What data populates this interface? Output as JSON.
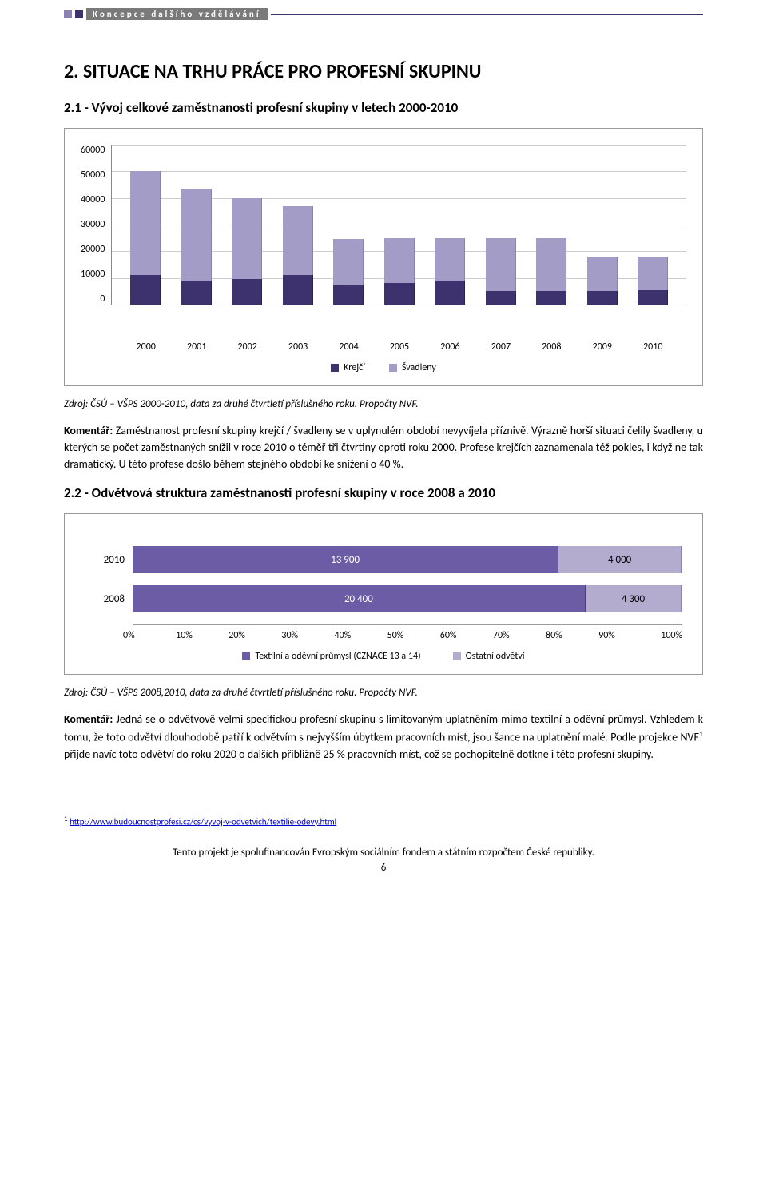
{
  "header": {
    "strip_text": "Koncepce dalšího vzdělávání"
  },
  "section": {
    "title": "2. SITUACE NA TRHU PRÁCE PRO PROFESNÍ SKUPINU",
    "sub1": "2.1 - Vývoj celkové zaměstnanosti profesní skupiny v letech 2000-2010",
    "sub2": "2.2 - Odvětvová struktura zaměstnanosti profesní skupiny v roce 2008 a 2010"
  },
  "chart1": {
    "type": "stacked-bar",
    "ylim": [
      0,
      60000
    ],
    "ytick_step": 10000,
    "yticks": [
      "60000",
      "50000",
      "40000",
      "30000",
      "20000",
      "10000",
      "0"
    ],
    "categories": [
      "2000",
      "2001",
      "2002",
      "2003",
      "2004",
      "2005",
      "2006",
      "2007",
      "2008",
      "2009",
      "2010"
    ],
    "series": [
      {
        "name": "Krejčí",
        "color": "#3d326d",
        "values": [
          11000,
          9000,
          9500,
          11000,
          7500,
          8000,
          9000,
          5000,
          5000,
          5000,
          5500
        ]
      },
      {
        "name": "Švadleny",
        "color": "#a29cc6",
        "values": [
          39000,
          34500,
          30500,
          26000,
          17000,
          17000,
          16000,
          20000,
          20000,
          13000,
          12500
        ]
      }
    ],
    "legend": [
      {
        "label": "Krejčí",
        "color": "#3d326d"
      },
      {
        "label": "Švadleny",
        "color": "#a29cc6"
      }
    ],
    "grid_color": "#cccccc",
    "background_color": "#ffffff"
  },
  "source1": "Zdroj: ČSÚ – VŠPS 2000-2010, data za druhé čtvrtletí příslušného roku. Propočty NVF.",
  "comment1_label": "Komentář:",
  "comment1_body": " Zaměstnanost profesní skupiny krejčí / švadleny se v uplynulém období nevyvíjela příznivě. Výrazně horší situaci čelily švadleny, u kterých se počet zaměstnaných snížil v roce 2010 o téměř tři čtvrtiny oproti roku 2000. Profese krejčích zaznamenala též pokles, i když ne tak dramatický. U této profese došlo během stejného období ke snížení o 40 %.",
  "chart2": {
    "type": "stacked-horizontal-bar",
    "rows": [
      {
        "label": "2010",
        "segments": [
          {
            "value": "13 900",
            "pct": 77.7,
            "color": "#6b5ca5",
            "text_color": "#ffffff"
          },
          {
            "value": "4 000",
            "pct": 22.3,
            "color": "#b3accf",
            "text_color": "#000000"
          }
        ]
      },
      {
        "label": "2008",
        "segments": [
          {
            "value": "20 400",
            "pct": 82.6,
            "color": "#6b5ca5",
            "text_color": "#ffffff"
          },
          {
            "value": "4 300",
            "pct": 17.4,
            "color": "#b3accf",
            "text_color": "#000000"
          }
        ]
      }
    ],
    "xaxis": [
      "0%",
      "10%",
      "20%",
      "30%",
      "40%",
      "50%",
      "60%",
      "70%",
      "80%",
      "90%",
      "100%"
    ],
    "legend": [
      {
        "label": "Textilní a oděvní průmysl (CZNACE 13 a 14)",
        "color": "#6b5ca5"
      },
      {
        "label": "Ostatní odvětví",
        "color": "#b3accf"
      }
    ]
  },
  "source2": "Zdroj: ČSÚ – VŠPS 2008,2010, data za druhé čtvrtletí příslušného roku. Propočty NVF.",
  "comment2_label": "Komentář:",
  "comment2_body_a": " Jedná se o odvětvově velmi specifickou profesní skupinu s limitovaným uplatněním mimo textilní a oděvní průmysl. Vzhledem k tomu, že toto odvětví dlouhodobě patří k odvětvím s nejvyšším úbytkem pracovních míst, jsou šance na uplatnění malé. Podle projekce NVF",
  "comment2_sup": "1",
  "comment2_body_b": " přijde navíc toto odvětví do roku 2020 o dalších přibližně 25 % pracovních míst, což se pochopitelně dotkne i této profesní skupiny.",
  "footnote": {
    "num": "1",
    "url_text": "http://www.budoucnostprofesi.cz/cs/vyvoj-v-odvetvich/textilie-odevy.html"
  },
  "footer": {
    "line": "Tento projekt je spolufinancován Evropským sociálním fondem a státním rozpočtem České republiky.",
    "page": "6"
  }
}
